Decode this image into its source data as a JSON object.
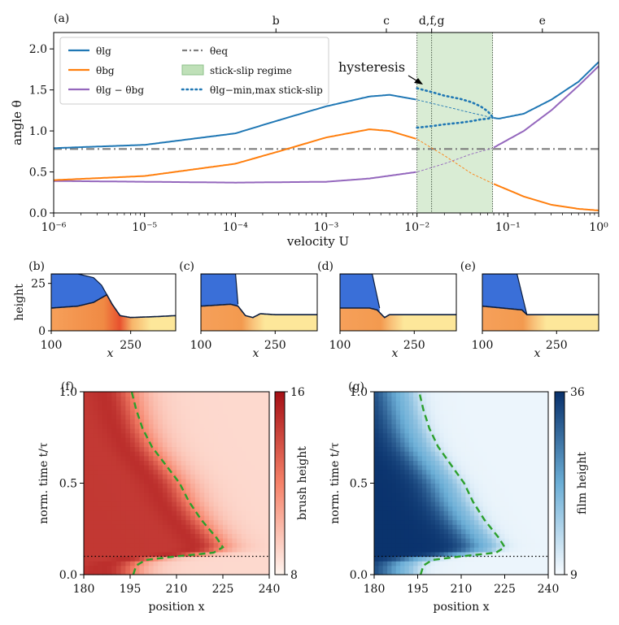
{
  "chart_data": [
    {
      "panel": "(a)",
      "type": "line",
      "xscale": "log",
      "xlim": [
        1e-06,
        1
      ],
      "ylim": [
        0,
        2.2
      ],
      "x_ticks": [
        1e-06,
        1e-05,
        0.0001,
        0.001,
        0.01,
        0.1,
        1
      ],
      "x_tick_labels": [
        "10⁻⁶",
        "10⁻⁵",
        "10⁻⁴",
        "10⁻³",
        "10⁻²",
        "10⁻¹",
        "10⁰"
      ],
      "y_ticks": [
        0.0,
        0.5,
        1.0,
        1.5,
        2.0
      ],
      "y_tick_labels": [
        "0.0",
        "0.5",
        "1.0",
        "1.5",
        "2.0"
      ],
      "xlabel": "velocity U",
      "ylabel": "angle θ",
      "top_markers": [
        {
          "label": "b",
          "x": 0.00028
        },
        {
          "label": "c",
          "x": 0.0046
        },
        {
          "label": "d,f,g",
          "x": 0.0145
        },
        {
          "label": "e",
          "x": 0.24
        }
      ],
      "legend": [
        {
          "label": "θlg",
          "style": "line",
          "color": "#1f77b4"
        },
        {
          "label": "θbg",
          "style": "line",
          "color": "#ff7f0e"
        },
        {
          "label": "θlg − θbg",
          "style": "line",
          "color": "#9467bd"
        },
        {
          "label": "θeq",
          "style": "dashdot",
          "color": "#7f7f7f"
        },
        {
          "label": "stick-slip regime",
          "style": "patch",
          "color": "#bfe0b8"
        },
        {
          "label": "θlg−min,max stick-slip",
          "style": "dotted",
          "color": "#1f77b4"
        }
      ],
      "shaded_region": {
        "label": "stick-slip regime",
        "x": [
          0.01,
          0.068
        ]
      },
      "vlines": [
        0.01,
        0.0145,
        0.068
      ],
      "annotation": "hysteresis",
      "series": [
        {
          "name": "θlg",
          "color": "#1f77b4",
          "x": [
            1e-06,
            1e-05,
            0.0001,
            0.0003,
            0.001,
            0.003,
            0.005,
            0.01,
            0.02,
            0.04,
            0.068,
            0.08,
            0.15,
            0.3,
            0.6,
            1
          ],
          "y": [
            0.79,
            0.83,
            0.97,
            1.13,
            1.3,
            1.42,
            1.44,
            1.38,
            1.3,
            1.22,
            1.16,
            1.15,
            1.21,
            1.38,
            1.6,
            1.84
          ]
        },
        {
          "name": "θbg",
          "color": "#ff7f0e",
          "x": [
            1e-06,
            1e-05,
            0.0001,
            0.0003,
            0.001,
            0.003,
            0.005,
            0.01,
            0.02,
            0.04,
            0.068,
            0.15,
            0.3,
            0.6,
            1
          ],
          "y": [
            0.4,
            0.45,
            0.6,
            0.75,
            0.92,
            1.02,
            1.0,
            0.9,
            0.7,
            0.48,
            0.36,
            0.2,
            0.1,
            0.05,
            0.03
          ]
        },
        {
          "name": "θlg − θbg",
          "color": "#9467bd",
          "x": [
            1e-06,
            1e-05,
            0.0001,
            0.001,
            0.003,
            0.01,
            0.02,
            0.04,
            0.068,
            0.15,
            0.3,
            0.6,
            1
          ],
          "y": [
            0.39,
            0.38,
            0.37,
            0.38,
            0.42,
            0.5,
            0.6,
            0.72,
            0.79,
            1.0,
            1.25,
            1.55,
            1.79
          ]
        },
        {
          "name": "θeq",
          "color": "#7f7f7f",
          "x": [
            1e-06,
            1
          ],
          "y": [
            0.78,
            0.78
          ]
        },
        {
          "name": "θlg max stick-slip",
          "color": "#1f77b4",
          "x": [
            0.01,
            0.015,
            0.02,
            0.03,
            0.04,
            0.05,
            0.06,
            0.068
          ],
          "y": [
            1.52,
            1.47,
            1.43,
            1.39,
            1.35,
            1.3,
            1.24,
            1.17
          ]
        },
        {
          "name": "θlg min stick-slip",
          "color": "#1f77b4",
          "x": [
            0.01,
            0.015,
            0.02,
            0.03,
            0.04,
            0.05,
            0.06,
            0.068
          ],
          "y": [
            1.04,
            1.06,
            1.08,
            1.1,
            1.12,
            1.14,
            1.15,
            1.16
          ]
        }
      ]
    },
    {
      "panel": "(b)",
      "type": "area",
      "xlim": [
        100,
        335
      ],
      "ylim": [
        0,
        30
      ],
      "x_ticks": [
        100,
        250
      ],
      "y_ticks": [
        0,
        25
      ],
      "xlabel": "x",
      "ylabel": "height",
      "brush_surface": {
        "x": [
          100,
          150,
          180,
          205,
          215,
          230,
          250,
          300,
          335
        ],
        "y": [
          12,
          13,
          15,
          19,
          14,
          8,
          7,
          7.5,
          8
        ]
      },
      "film_surface": {
        "x": [
          100,
          150,
          180,
          195,
          205
        ],
        "y": [
          30,
          30,
          28,
          24,
          19
        ]
      }
    },
    {
      "panel": "(c)",
      "type": "area",
      "xlim": [
        100,
        335
      ],
      "ylim": [
        0,
        30
      ],
      "x_ticks": [
        100,
        250
      ],
      "xlabel": "x",
      "brush_surface": {
        "x": [
          100,
          160,
          175,
          190,
          205,
          220,
          250,
          335
        ],
        "y": [
          13,
          14,
          13,
          8,
          7,
          9,
          8.5,
          8.5
        ]
      },
      "film_surface": {
        "x": [
          100,
          170,
          175
        ],
        "y": [
          30,
          30,
          14
        ]
      }
    },
    {
      "panel": "(d)",
      "type": "area",
      "xlim": [
        100,
        335
      ],
      "ylim": [
        0,
        30
      ],
      "x_ticks": [
        100,
        250
      ],
      "xlabel": "x",
      "brush_surface": {
        "x": [
          100,
          160,
          175,
          190,
          200,
          215,
          250,
          335
        ],
        "y": [
          12,
          12,
          11,
          7,
          8.5,
          8.5,
          8.5,
          8.5
        ]
      },
      "film_surface": {
        "x": [
          100,
          165,
          180
        ],
        "y": [
          30,
          30,
          12
        ]
      }
    },
    {
      "panel": "(e)",
      "type": "area",
      "xlim": [
        100,
        335
      ],
      "ylim": [
        0,
        30
      ],
      "x_ticks": [
        100,
        250
      ],
      "xlabel": "x",
      "brush_surface": {
        "x": [
          100,
          180,
          190,
          335
        ],
        "y": [
          13,
          11,
          8.5,
          8.5
        ]
      },
      "film_surface": {
        "x": [
          100,
          170,
          190
        ],
        "y": [
          30,
          30,
          8.5
        ]
      }
    },
    {
      "panel": "(f)",
      "type": "heatmap",
      "colormap": "Reds",
      "xlim": [
        180,
        240
      ],
      "ylim": [
        0,
        1
      ],
      "x_ticks": [
        180,
        195,
        210,
        225,
        240
      ],
      "y_ticks": [
        0.0,
        0.5,
        1.0
      ],
      "xlabel": "position x",
      "ylabel": "norm. time t/τ",
      "colorbar": {
        "label": "brush height",
        "min": 8,
        "max": 16
      },
      "contact_line": {
        "t": [
          0.0,
          0.05,
          0.08,
          0.1,
          0.12,
          0.15,
          0.2,
          0.3,
          0.4,
          0.5,
          0.6,
          0.7,
          0.8,
          0.9,
          1.0
        ],
        "x": [
          196.0,
          197.0,
          200.0,
          210.0,
          222.0,
          225.0,
          223.0,
          218.0,
          214.0,
          211.0,
          206.5,
          202.0,
          199.0,
          197.0,
          195.5
        ]
      },
      "hline_t": 0.1
    },
    {
      "panel": "(g)",
      "type": "heatmap",
      "colormap": "Blues",
      "xlim": [
        180,
        240
      ],
      "ylim": [
        0,
        1
      ],
      "x_ticks": [
        180,
        195,
        210,
        225,
        240
      ],
      "y_ticks": [
        0.0,
        0.5,
        1.0
      ],
      "xlabel": "position x",
      "ylabel": "norm. time t/τ",
      "colorbar": {
        "label": "film height",
        "min": 9,
        "max": 36
      },
      "contact_line": {
        "t": [
          0.0,
          0.05,
          0.08,
          0.1,
          0.12,
          0.15,
          0.2,
          0.3,
          0.4,
          0.5,
          0.6,
          0.7,
          0.8,
          0.9,
          1.0
        ],
        "x": [
          196.0,
          197.0,
          200.0,
          210.0,
          222.0,
          225.0,
          223.0,
          218.0,
          214.0,
          211.0,
          206.5,
          202.0,
          199.0,
          197.0,
          195.5
        ]
      },
      "hline_t": 0.1
    }
  ]
}
